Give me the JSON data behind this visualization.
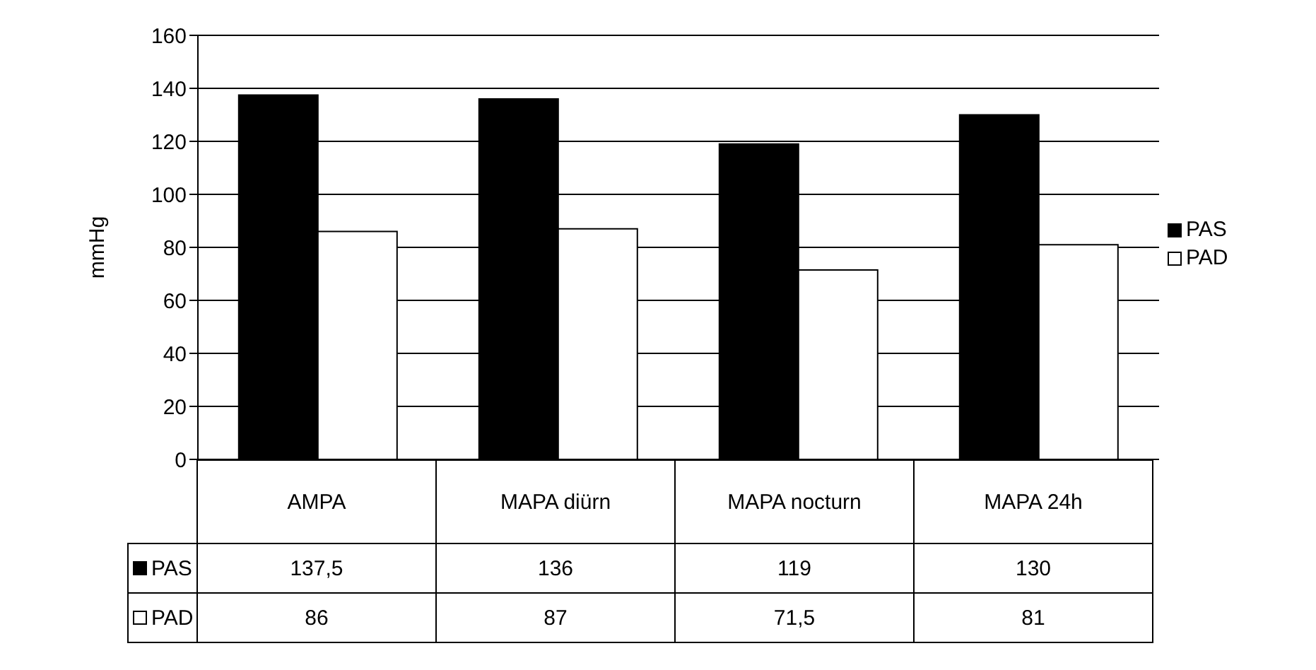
{
  "chart_data": {
    "type": "bar",
    "ylabel": "mmHg",
    "categories": [
      "AMPA",
      "MAPA diürn",
      "MAPA nocturn",
      "MAPA 24h"
    ],
    "series": [
      {
        "name": "PAS",
        "color": "#000000",
        "values": [
          137.5,
          136,
          119,
          130
        ],
        "value_labels": [
          "137,5",
          "136",
          "119",
          "130"
        ]
      },
      {
        "name": "PAD",
        "color": "#ffffff",
        "values": [
          86,
          87,
          71.5,
          81
        ],
        "value_labels": [
          "86",
          "87",
          "71,5",
          "81"
        ]
      }
    ],
    "ylim": [
      0,
      160
    ],
    "yticks": [
      0,
      20,
      40,
      60,
      80,
      100,
      120,
      140,
      160
    ],
    "grid": "y",
    "legend": "right"
  }
}
